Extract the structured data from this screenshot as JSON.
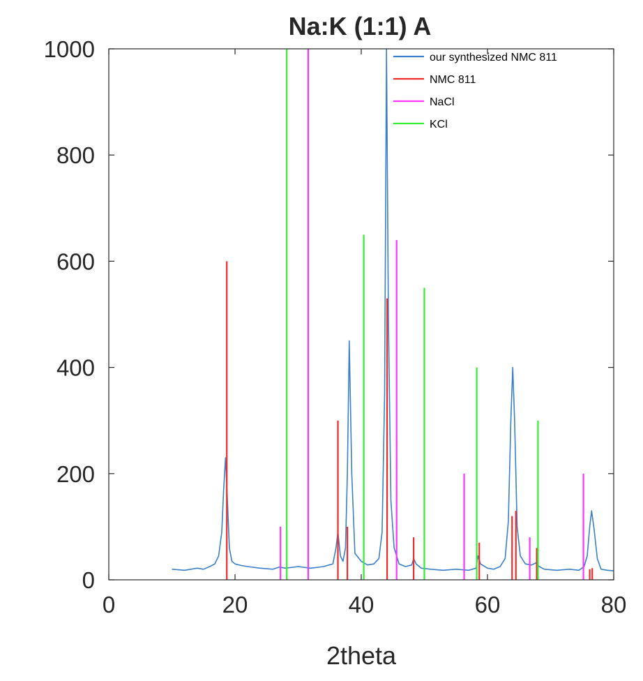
{
  "chart_data": {
    "type": "line",
    "title": "Na:K (1:1) A",
    "xlabel": "2theta",
    "ylabel": "",
    "xlim": [
      0,
      80
    ],
    "ylim": [
      0,
      1000
    ],
    "xticks": [
      0,
      20,
      40,
      60,
      80
    ],
    "yticks": [
      0,
      200,
      400,
      600,
      800,
      1000
    ],
    "grid": false,
    "legend_position": "top-right",
    "colors": {
      "our synthesized NMC 811": "#3a7fc7",
      "NMC 811": "#ee2a2a",
      "NaCl": "#ff33ff",
      "KCl": "#33ee33"
    },
    "series": [
      {
        "name": "our synthesized NMC 811",
        "kind": "line",
        "x": [
          10,
          12,
          14,
          15,
          16,
          16.8,
          17.4,
          17.9,
          18.2,
          18.5,
          18.8,
          19.1,
          19.5,
          20,
          21,
          22,
          24,
          26,
          27,
          28,
          30,
          32,
          34,
          35.5,
          36,
          36.3,
          36.7,
          37.1,
          37.5,
          37.8,
          38.1,
          38.5,
          39,
          40,
          41,
          42,
          42.8,
          43.3,
          43.7,
          44.0,
          44.3,
          44.7,
          45.2,
          46,
          47,
          48,
          48.3,
          48.7,
          49.5,
          51,
          53,
          55,
          57,
          58.2,
          58.5,
          58.9,
          60,
          61,
          62,
          62.8,
          63.3,
          63.7,
          64.0,
          64.3,
          64.7,
          65.2,
          66,
          67,
          67.7,
          68.2,
          69,
          71,
          73,
          74.5,
          75.3,
          75.8,
          76.2,
          76.5,
          76.9,
          77.4,
          78,
          79,
          80
        ],
        "y": [
          20,
          18,
          22,
          20,
          25,
          30,
          45,
          90,
          170,
          230,
          150,
          60,
          35,
          30,
          27,
          25,
          22,
          20,
          24,
          22,
          25,
          22,
          25,
          30,
          60,
          90,
          45,
          35,
          60,
          200,
          450,
          200,
          50,
          35,
          28,
          30,
          40,
          90,
          350,
          1000,
          500,
          150,
          60,
          30,
          25,
          28,
          40,
          30,
          22,
          20,
          18,
          20,
          18,
          22,
          45,
          30,
          22,
          20,
          25,
          40,
          110,
          300,
          400,
          300,
          100,
          45,
          30,
          28,
          32,
          25,
          20,
          18,
          20,
          18,
          25,
          45,
          100,
          130,
          95,
          40,
          20,
          18,
          17
        ]
      },
      {
        "name": "NMC 811",
        "kind": "stick",
        "x": [
          18.7,
          36.3,
          37.8,
          44.1,
          48.3,
          58.7,
          63.9,
          64.5,
          67.8,
          76.2,
          76.6
        ],
        "y": [
          600,
          300,
          100,
          530,
          80,
          70,
          120,
          130,
          60,
          20,
          22
        ]
      },
      {
        "name": "NaCl",
        "kind": "stick",
        "x": [
          27.2,
          31.6,
          45.6,
          56.3,
          66.7,
          75.2
        ],
        "y": [
          100,
          1000,
          640,
          200,
          80,
          200
        ]
      },
      {
        "name": "KCl",
        "kind": "stick",
        "x": [
          28.2,
          40.4,
          50.0,
          58.3,
          68.0
        ],
        "y": [
          1000,
          650,
          550,
          400,
          300
        ]
      }
    ]
  }
}
